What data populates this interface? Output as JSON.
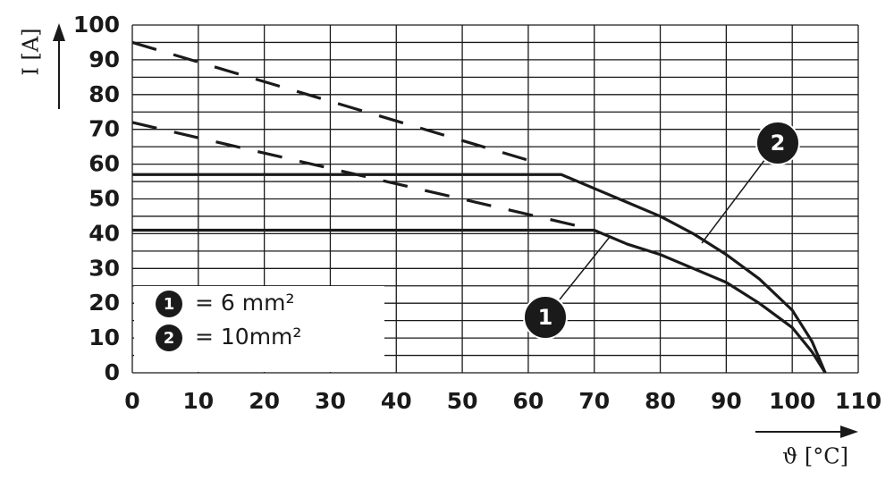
{
  "chart_data": {
    "type": "line",
    "y_label": "I [A]",
    "x_label": "ϑ [°C]",
    "xlim": [
      0,
      110
    ],
    "xticks": [
      0,
      10,
      20,
      30,
      40,
      50,
      60,
      70,
      80,
      90,
      100,
      110
    ],
    "ylim": [
      0,
      100
    ],
    "yticks": [
      0,
      10,
      20,
      30,
      40,
      50,
      60,
      70,
      80,
      90,
      100
    ],
    "ygrid": [
      5,
      15,
      25,
      35,
      45,
      55,
      65,
      75,
      85,
      95
    ],
    "grid": true,
    "series": [
      {
        "name": "1",
        "legend_label": "= 6 mm²",
        "color": "#1a1a1a",
        "style": "solid",
        "x": [
          0,
          70,
          75,
          80,
          85,
          90,
          95,
          100,
          103,
          105
        ],
        "values": [
          41,
          41,
          37,
          34,
          30,
          26,
          20,
          13,
          6,
          0
        ]
      },
      {
        "name": "2",
        "legend_label": "= 10mm²",
        "color": "#1a1a1a",
        "style": "solid",
        "x": [
          0,
          65,
          70,
          75,
          80,
          85,
          90,
          95,
          100,
          103,
          105
        ],
        "values": [
          57,
          57,
          53,
          49,
          45,
          40,
          34,
          27,
          18,
          9,
          0
        ]
      },
      {
        "color": "#1a1a1a",
        "style": "dashed",
        "x": [
          0,
          68
        ],
        "values": [
          72,
          42
        ]
      },
      {
        "color": "#1a1a1a",
        "style": "dashed",
        "x": [
          0,
          62
        ],
        "values": [
          95,
          60
        ]
      }
    ]
  }
}
